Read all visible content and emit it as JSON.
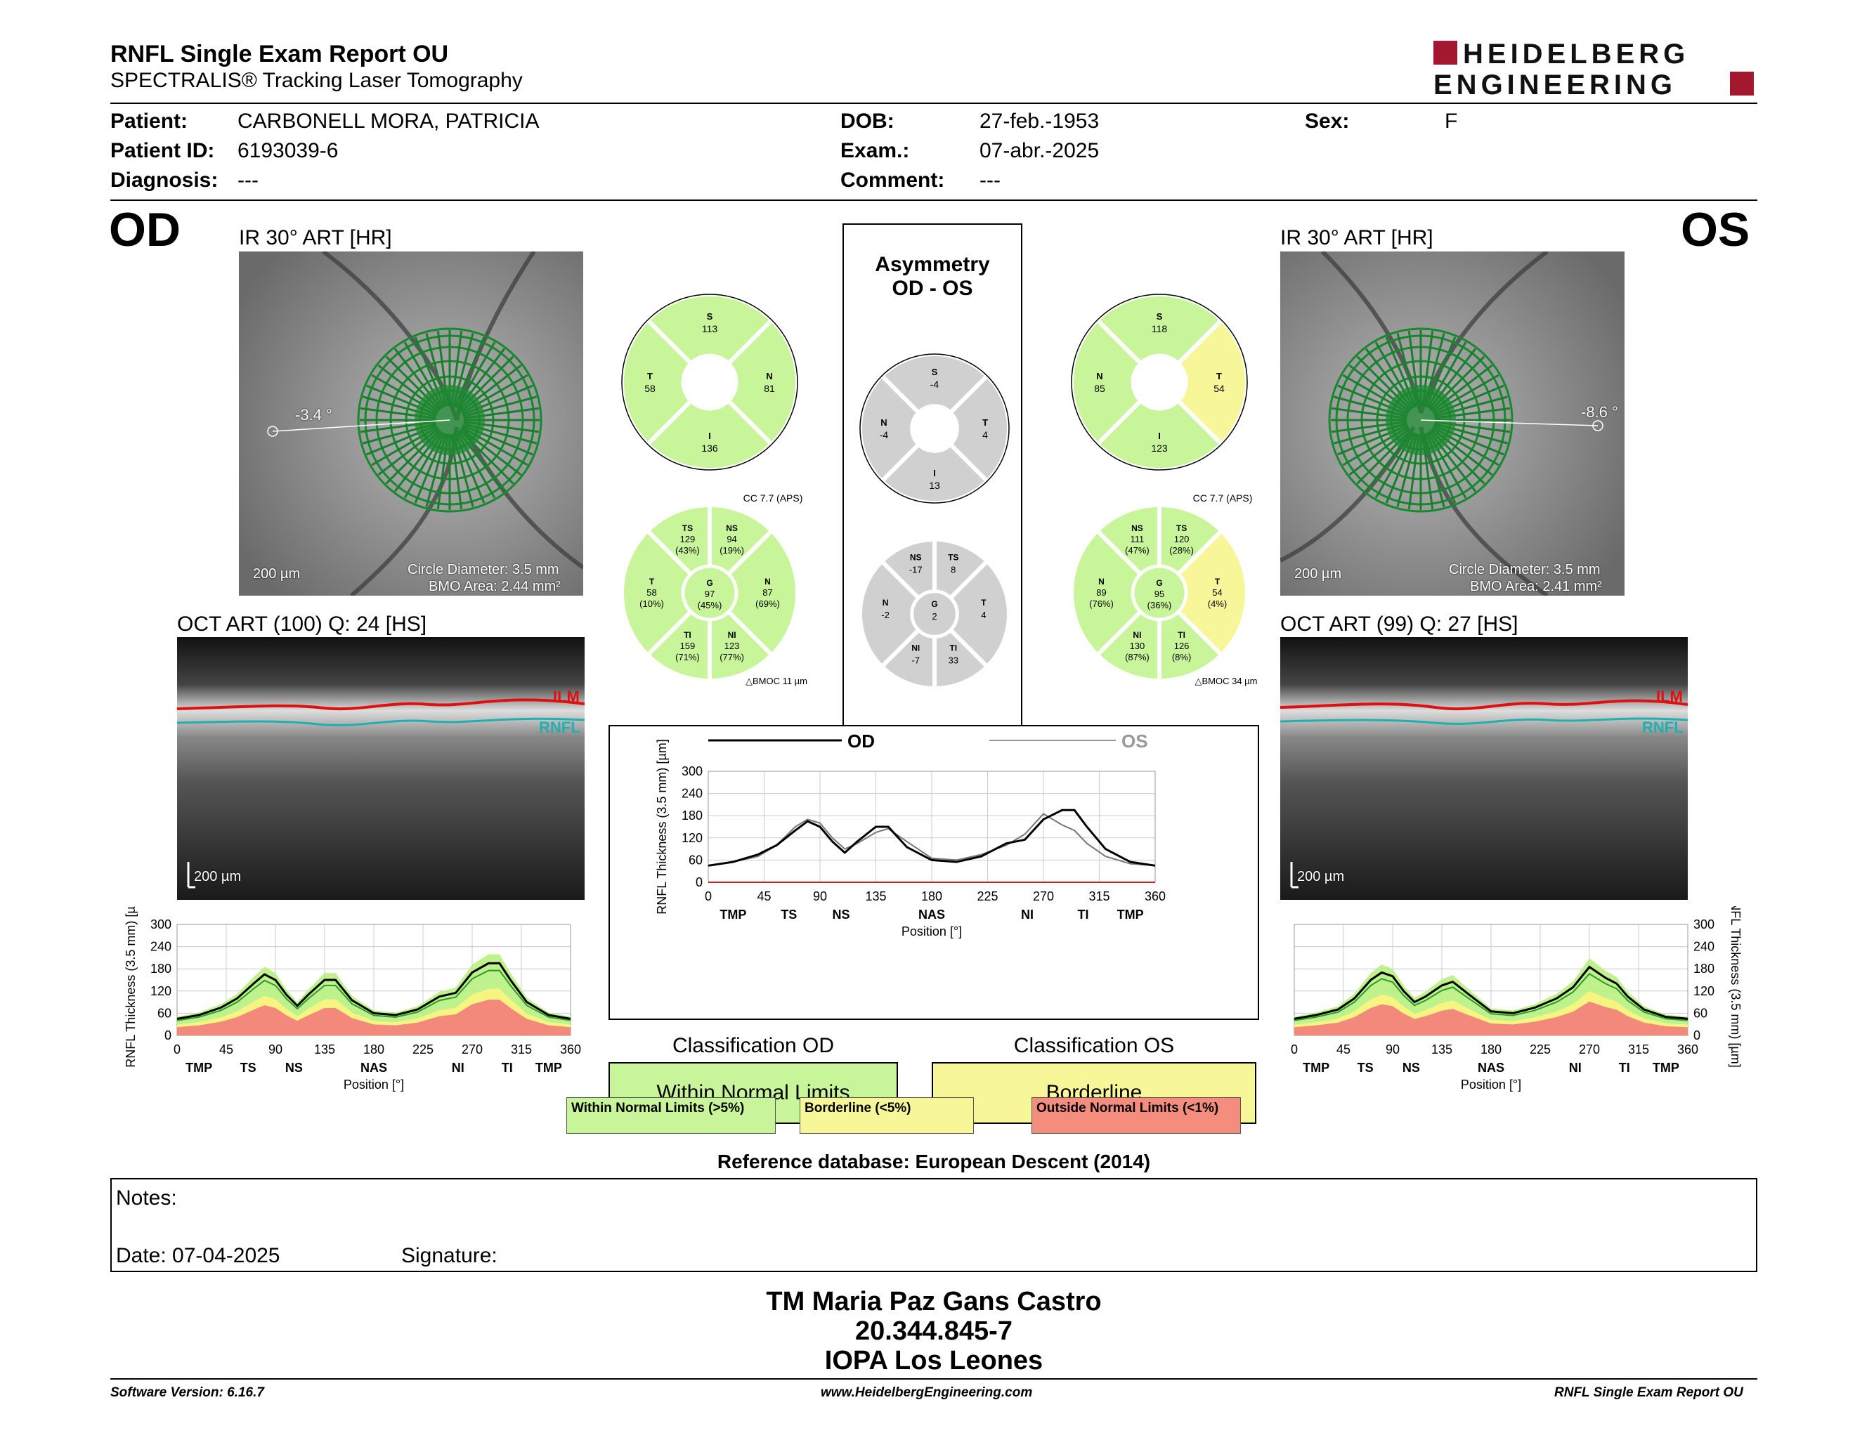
{
  "header": {
    "title": "RNFL Single Exam Report OU",
    "subtitle": "SPECTRALIS® Tracking Laser Tomography",
    "logo_line1": "HEIDELBERG",
    "logo_line2": "ENGINEERING"
  },
  "patient": {
    "patient_label": "Patient:",
    "patient_value": "CARBONELL MORA, PATRICIA",
    "id_label": "Patient ID:",
    "id_value": "6193039-6",
    "diagnosis_label": "Diagnosis:",
    "diagnosis_value": "---",
    "dob_label": "DOB:",
    "dob_value": "27-feb.-1953",
    "exam_label": "Exam.:",
    "exam_value": "07-abr.-2025",
    "comment_label": "Comment:",
    "comment_value": "---",
    "sex_label": "Sex:",
    "sex_value": "F"
  },
  "od": {
    "eye_label": "OD",
    "ir_caption": "IR 30° ART [HR]",
    "angle": "-3.4 °",
    "scale": "200 µm",
    "circle_diameter": "Circle Diameter: 3.5 mm",
    "bmo_area": "BMO Area: 2.44 mm²",
    "oct_caption": "OCT ART (100) Q: 24 [HS]",
    "oct_scale": "200 µm",
    "ilm": "ILM",
    "rnfl": "RNFL",
    "sectors4": {
      "S": "113",
      "T": "58",
      "N": "81",
      "I": "136"
    },
    "sectors6": {
      "TS": [
        "129",
        "(43%)"
      ],
      "NS": [
        "94",
        "(19%)"
      ],
      "T": [
        "58",
        "(10%)"
      ],
      "G": [
        "97",
        "(45%)"
      ],
      "N": [
        "87",
        "(69%)"
      ],
      "TI": [
        "159",
        "(71%)"
      ],
      "NI": [
        "123",
        "(77%)"
      ]
    },
    "cc": "CC 7.7 (APS)",
    "bmoc": "△BMOC 11 µm"
  },
  "os": {
    "eye_label": "OS",
    "ir_caption": "IR 30° ART [HR]",
    "angle": "-8.6 °",
    "scale": "200 µm",
    "circle_diameter": "Circle Diameter: 3.5 mm",
    "bmo_area": "BMO Area: 2.41 mm²",
    "oct_caption": "OCT ART (99) Q: 27 [HS]",
    "oct_scale": "200 µm",
    "ilm": "ILM",
    "rnfl": "RNFL",
    "sectors4": {
      "S": "118",
      "T": "54",
      "N": "85",
      "I": "123"
    },
    "sectors6": {
      "NS": [
        "111",
        "(47%)"
      ],
      "TS": [
        "120",
        "(28%)"
      ],
      "N": [
        "89",
        "(76%)"
      ],
      "G": [
        "95",
        "(36%)"
      ],
      "T": [
        "54",
        "(4%)"
      ],
      "NI": [
        "130",
        "(87%)"
      ],
      "TI": [
        "126",
        "(8%)"
      ]
    },
    "cc": "CC 7.7 (APS)",
    "bmoc": "△BMOC 34 µm"
  },
  "asymmetry": {
    "title1": "Asymmetry",
    "title2": "OD - OS",
    "sectors4": {
      "S": "-4",
      "N": "-4",
      "T": "4",
      "I": "13"
    },
    "sectors6": {
      "NS": "-17",
      "TS": "8",
      "N": "-2",
      "G": "2",
      "T": "4",
      "NI": "-7",
      "TI": "33"
    }
  },
  "chart_data": [
    {
      "type": "line",
      "ylabel": "RNFL Thickness (3.5 mm) [µm]",
      "xlabel": "Position [°]",
      "xlim": [
        0,
        360
      ],
      "ylim": [
        0,
        300
      ],
      "xticks": [
        0,
        45,
        90,
        135,
        180,
        225,
        270,
        315,
        360
      ],
      "yticks": [
        0,
        60,
        120,
        180,
        240,
        300
      ],
      "sector_labels": [
        "TMP",
        "TS",
        "NS",
        "NAS",
        "NI",
        "TI",
        "TMP"
      ],
      "sector_positions": [
        20,
        65,
        107,
        180,
        257,
        302,
        340
      ],
      "x": [
        0,
        20,
        40,
        55,
        70,
        80,
        90,
        100,
        110,
        120,
        135,
        145,
        160,
        180,
        200,
        220,
        240,
        255,
        270,
        285,
        295,
        305,
        320,
        340,
        360
      ],
      "series": [
        {
          "name": "OD",
          "values": [
            45,
            55,
            75,
            100,
            140,
            165,
            150,
            110,
            80,
            110,
            150,
            150,
            95,
            60,
            55,
            70,
            105,
            115,
            170,
            195,
            195,
            150,
            90,
            55,
            45
          ]
        },
        {
          "name": "OS",
          "values": [
            45,
            55,
            70,
            100,
            150,
            170,
            160,
            120,
            90,
            105,
            135,
            145,
            110,
            65,
            60,
            75,
            100,
            130,
            185,
            155,
            140,
            105,
            70,
            50,
            45
          ]
        }
      ],
      "legend": [
        "OD",
        "OS"
      ]
    }
  ],
  "classification": {
    "od_title": "Classification OD",
    "od_value": "Within Normal Limits",
    "os_title": "Classification OS",
    "os_value": "Borderline",
    "legend_green": "Within Normal Limits (>5%)",
    "legend_yellow": "Borderline (<5%)",
    "legend_red": "Outside Normal Limits (<1%)",
    "colors": {
      "green": "#c8f59a",
      "yellow": "#f7f79a",
      "red": "#f58d7f",
      "gray": "#d0d0d0"
    }
  },
  "refdb": "Reference database: European Descent (2014)",
  "notes": {
    "label": "Notes:",
    "date": "Date: 07-04-2025",
    "signature": "Signature:"
  },
  "footer": {
    "name": "TM Maria Paz Gans Castro",
    "rut": "20.344.845-7",
    "clinic": "IOPA Los Leones",
    "software": "Software Version: 6.16.7",
    "website": "www.HeidelbergEngineering.com",
    "report": "RNFL Single Exam Report OU"
  }
}
